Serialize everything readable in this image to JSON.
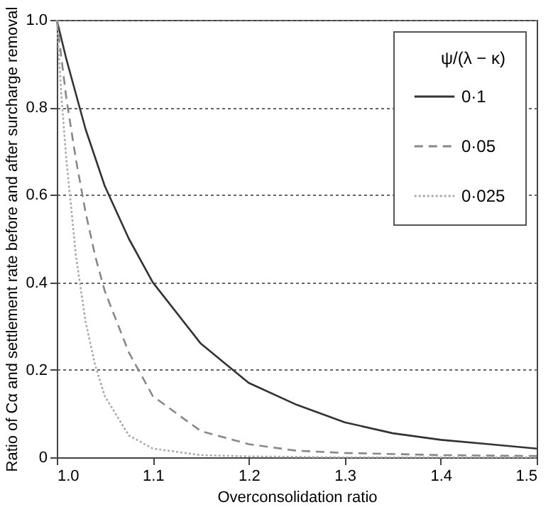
{
  "chart_data": {
    "type": "line",
    "xlabel": "Overconsolidation ratio",
    "ylabel": "Ratio of Cα and settlement rate before and after surcharge removal",
    "legend_title": "ψ/(λ − κ)",
    "legend": "top right",
    "grid": "y",
    "marker": "none",
    "xlim": [
      1.0,
      1.5
    ],
    "xticks": [
      {
        "value": 1.0,
        "label": "1.0"
      },
      1.1,
      1.2,
      1.3,
      1.4,
      1.5
    ],
    "ylim": [
      0,
      1.0
    ],
    "yticks": [
      0,
      0.2,
      0.4,
      0.6,
      0.8,
      {
        "value": 1.0,
        "label": "1.0"
      }
    ],
    "series": [
      {
        "name": "0·1",
        "color": "#333333",
        "line_style": "solid",
        "x": [
          1.0,
          1.01,
          1.02,
          1.03,
          1.05,
          1.075,
          1.1,
          1.15,
          1.2,
          1.25,
          1.3,
          1.35,
          1.4,
          1.45,
          1.5
        ],
        "values": [
          1.0,
          0.91,
          0.83,
          0.75,
          0.62,
          0.5,
          0.4,
          0.26,
          0.17,
          0.12,
          0.08,
          0.055,
          0.04,
          0.03,
          0.02
        ]
      },
      {
        "name": "0·05",
        "color": "#888888",
        "line_style": "dashed",
        "x": [
          1.0,
          1.01,
          1.02,
          1.03,
          1.04,
          1.05,
          1.075,
          1.1,
          1.15,
          1.2,
          1.25,
          1.3,
          1.4,
          1.5
        ],
        "values": [
          1.0,
          0.82,
          0.68,
          0.56,
          0.46,
          0.38,
          0.24,
          0.14,
          0.06,
          0.03,
          0.015,
          0.01,
          0.005,
          0.003
        ]
      },
      {
        "name": "0·025",
        "color": "#aaaaaa",
        "line_style": "dotted",
        "x": [
          1.0,
          1.005,
          1.01,
          1.02,
          1.03,
          1.04,
          1.05,
          1.075,
          1.1,
          1.15,
          1.2,
          1.3,
          1.5
        ],
        "values": [
          1.0,
          0.82,
          0.68,
          0.46,
          0.31,
          0.21,
          0.14,
          0.05,
          0.02,
          0.005,
          0.002,
          0,
          0
        ]
      }
    ]
  }
}
